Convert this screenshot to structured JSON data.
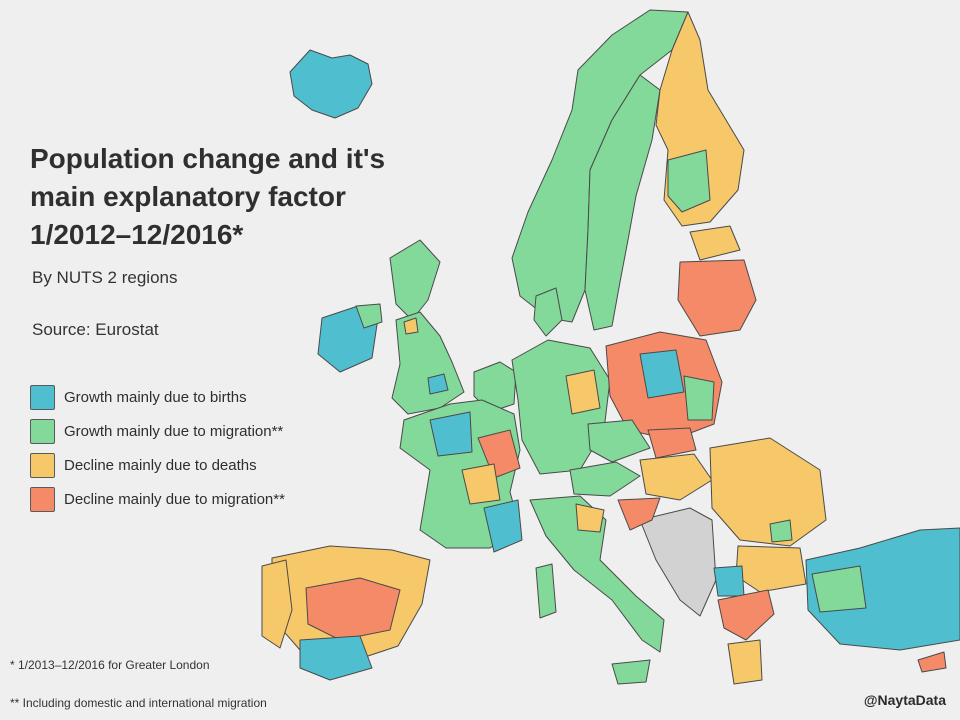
{
  "title_lines": [
    "Population change and it's",
    "main explanatory factor",
    "1/2012–12/2016*"
  ],
  "subtitle": "By NUTS 2 regions",
  "source": "Source: Eurostat",
  "legend": [
    {
      "label": "Growth mainly due to births",
      "color": "#4fbfcf"
    },
    {
      "label": "Growth mainly due to migration**",
      "color": "#82d99a"
    },
    {
      "label": "Decline mainly due to deaths",
      "color": "#f6c86a"
    },
    {
      "label": "Decline mainly due to migration**",
      "color": "#f58a68"
    }
  ],
  "no_data_color": "#d2d2d2",
  "footnotes": [
    "* 1/2013–12/2016 for Greater London",
    "** Including domestic and international migration"
  ],
  "credit": "@NaytaData"
}
